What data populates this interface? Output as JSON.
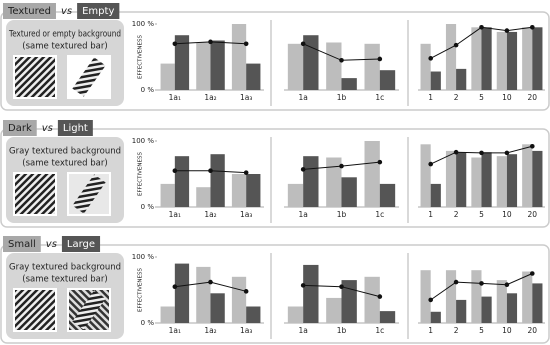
{
  "rows": [
    {
      "header": [
        "Textured",
        "vs",
        "Empty"
      ],
      "panel": [
        "Textured or empty background",
        "(same textured bar)"
      ]
    },
    {
      "header": [
        "Dark",
        "vs",
        "Light"
      ],
      "panel": [
        "Gray textured background",
        "(same textured bar)"
      ]
    },
    {
      "header": [
        "Small",
        "vs",
        "Large"
      ],
      "panel": [
        "Gray textured background",
        "(same textured bar)"
      ]
    }
  ],
  "chart_data": [
    {
      "type": "bar",
      "categories": [
        "1a₁",
        "1a₂",
        "1a₃"
      ],
      "ylim": [
        0,
        100
      ],
      "yticks": [
        {
          "value": 0,
          "label": "0 %"
        },
        {
          "value": 100,
          "label": "100 %"
        }
      ],
      "ylabel": "EFFECTIVENESS",
      "series": [
        {
          "type": "bar",
          "color": "#bdbdbd",
          "values": [
            40,
            72,
            100
          ]
        },
        {
          "type": "bar",
          "color": "#555555",
          "values": [
            83,
            75,
            40
          ]
        },
        {
          "type": "line",
          "color": "#111111",
          "values": [
            70,
            73,
            70
          ]
        }
      ]
    },
    {
      "type": "bar",
      "categories": [
        "1a",
        "1b",
        "1c"
      ],
      "ylim": [
        0,
        100
      ],
      "series": [
        {
          "type": "bar",
          "color": "#bdbdbd",
          "values": [
            70,
            72,
            70
          ]
        },
        {
          "type": "bar",
          "color": "#555555",
          "values": [
            83,
            18,
            30
          ]
        },
        {
          "type": "line",
          "color": "#111111",
          "values": [
            70,
            45,
            47
          ]
        }
      ]
    },
    {
      "type": "bar",
      "categories": [
        "1",
        "2",
        "5",
        "10",
        "20"
      ],
      "ylim": [
        0,
        100
      ],
      "series": [
        {
          "type": "bar",
          "color": "#bdbdbd",
          "values": [
            70,
            100,
            95,
            88,
            95
          ]
        },
        {
          "type": "bar",
          "color": "#555555",
          "values": [
            28,
            32,
            95,
            88,
            95
          ]
        },
        {
          "type": "line",
          "color": "#111111",
          "values": [
            48,
            68,
            95,
            90,
            95
          ]
        }
      ]
    },
    {
      "type": "bar",
      "categories": [
        "1a₁",
        "1a₂",
        "1a₃"
      ],
      "ylim": [
        0,
        100
      ],
      "yticks": [
        {
          "value": 0,
          "label": "0 %"
        },
        {
          "value": 100,
          "label": "100 %"
        }
      ],
      "ylabel": "EFFECTIVENESS",
      "series": [
        {
          "type": "bar",
          "color": "#bdbdbd",
          "values": [
            35,
            30,
            50
          ]
        },
        {
          "type": "bar",
          "color": "#555555",
          "values": [
            77,
            80,
            50
          ]
        },
        {
          "type": "line",
          "color": "#111111",
          "values": [
            55,
            55,
            52
          ]
        }
      ]
    },
    {
      "type": "bar",
      "categories": [
        "1a",
        "1b",
        "1c"
      ],
      "ylim": [
        0,
        100
      ],
      "series": [
        {
          "type": "bar",
          "color": "#bdbdbd",
          "values": [
            35,
            75,
            100
          ]
        },
        {
          "type": "bar",
          "color": "#555555",
          "values": [
            77,
            45,
            35
          ]
        },
        {
          "type": "line",
          "color": "#111111",
          "values": [
            57,
            62,
            68
          ]
        }
      ]
    },
    {
      "type": "bar",
      "categories": [
        "1",
        "2",
        "5",
        "10",
        "20"
      ],
      "ylim": [
        0,
        100
      ],
      "series": [
        {
          "type": "bar",
          "color": "#bdbdbd",
          "values": [
            95,
            85,
            75,
            77,
            95
          ]
        },
        {
          "type": "bar",
          "color": "#555555",
          "values": [
            35,
            83,
            83,
            80,
            85
          ]
        },
        {
          "type": "line",
          "color": "#111111",
          "values": [
            65,
            83,
            82,
            82,
            92
          ]
        }
      ]
    },
    {
      "type": "bar",
      "categories": [
        "1a₁",
        "1a₂",
        "1a₃"
      ],
      "ylim": [
        0,
        100
      ],
      "yticks": [
        {
          "value": 0,
          "label": "0 %"
        },
        {
          "value": 100,
          "label": "100 %"
        }
      ],
      "ylabel": "EFFECTIVENESS",
      "series": [
        {
          "type": "bar",
          "color": "#bdbdbd",
          "values": [
            25,
            85,
            70
          ]
        },
        {
          "type": "bar",
          "color": "#555555",
          "values": [
            90,
            45,
            25
          ]
        },
        {
          "type": "line",
          "color": "#111111",
          "values": [
            55,
            62,
            48
          ]
        }
      ]
    },
    {
      "type": "bar",
      "categories": [
        "1a",
        "1b",
        "1c"
      ],
      "ylim": [
        0,
        100
      ],
      "series": [
        {
          "type": "bar",
          "color": "#bdbdbd",
          "values": [
            25,
            38,
            70
          ]
        },
        {
          "type": "bar",
          "color": "#555555",
          "values": [
            88,
            65,
            18
          ]
        },
        {
          "type": "line",
          "color": "#111111",
          "values": [
            57,
            55,
            40
          ]
        }
      ]
    },
    {
      "type": "bar",
      "categories": [
        "1",
        "2",
        "5",
        "10",
        "20"
      ],
      "ylim": [
        0,
        100
      ],
      "series": [
        {
          "type": "bar",
          "color": "#bdbdbd",
          "values": [
            80,
            80,
            80,
            65,
            78
          ]
        },
        {
          "type": "bar",
          "color": "#555555",
          "values": [
            17,
            35,
            40,
            45,
            60
          ]
        },
        {
          "type": "line",
          "color": "#111111",
          "values": [
            35,
            62,
            60,
            58,
            75
          ]
        }
      ]
    }
  ]
}
